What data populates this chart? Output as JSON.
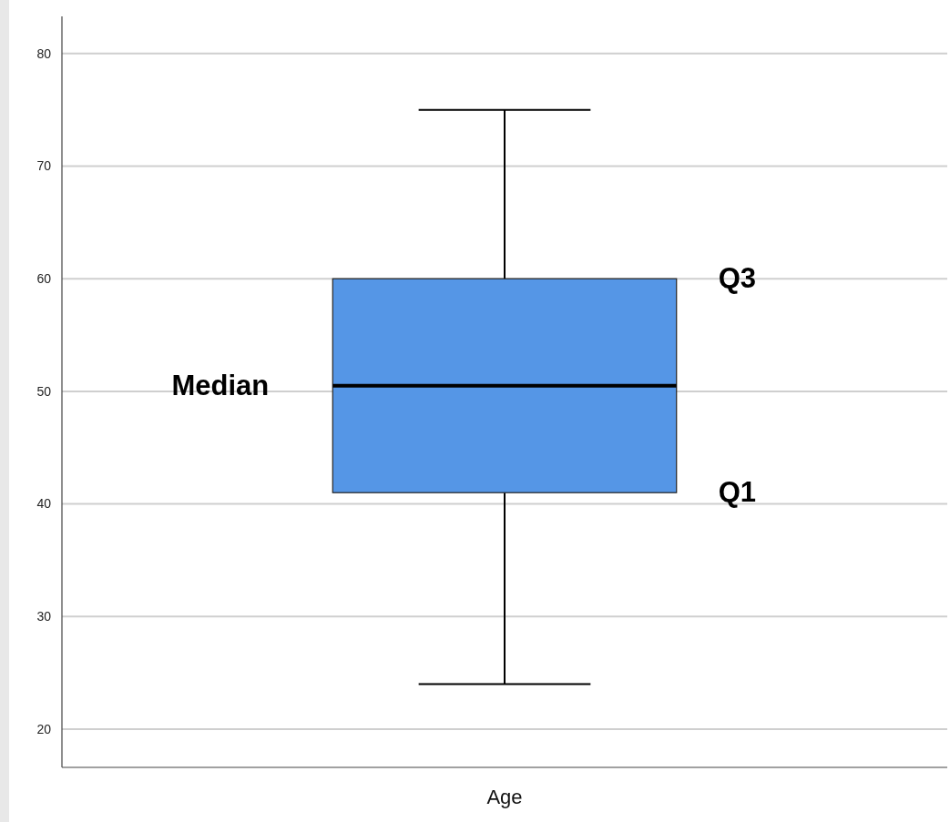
{
  "chart_data": {
    "type": "box",
    "categories": [
      "Age"
    ],
    "boxes": [
      {
        "low": 24,
        "q1": 41,
        "median": 50.5,
        "q3": 60,
        "high": 75
      }
    ],
    "color": "#5596e6",
    "ylim": [
      16.6,
      83.3
    ],
    "yticks": [
      20,
      30,
      40,
      50,
      60,
      70,
      80
    ],
    "grid": "y",
    "annotations": [
      "Q3",
      "Median",
      "Q1"
    ]
  }
}
